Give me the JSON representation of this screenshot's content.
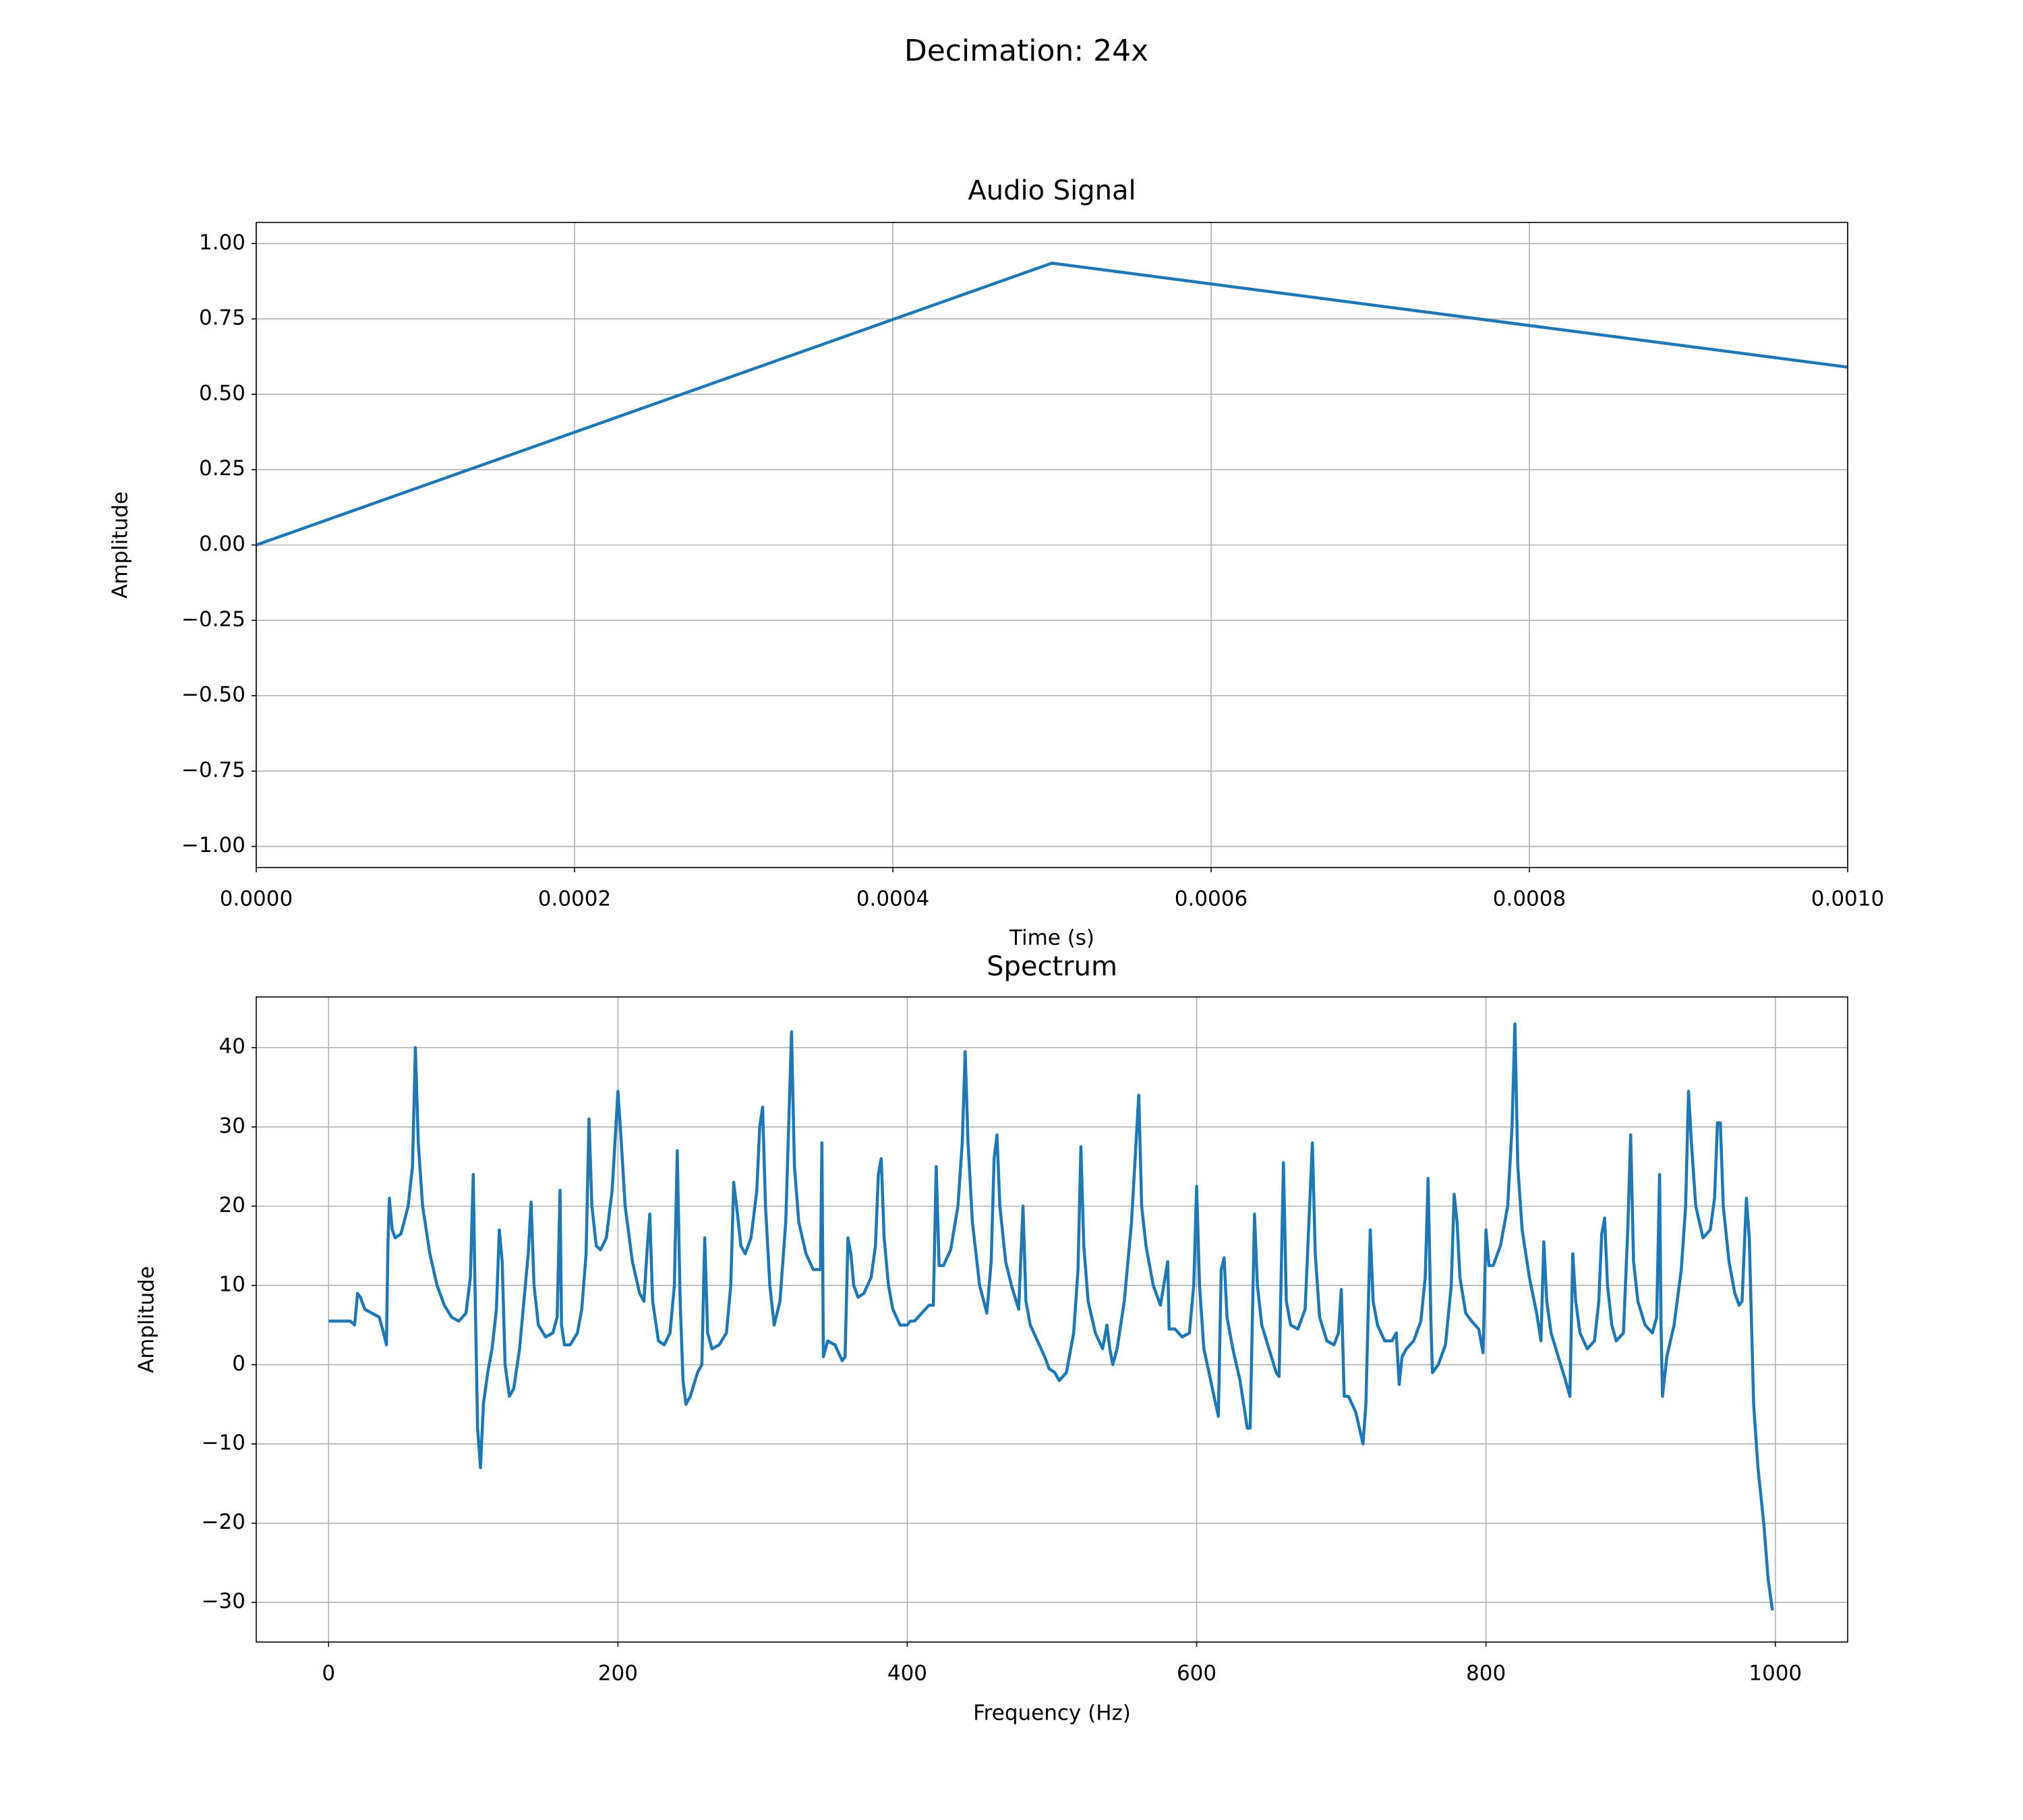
{
  "title": "Decimation: 24x",
  "chart_data": [
    {
      "type": "line",
      "title": "Audio Signal",
      "xlabel": "Time (s)",
      "ylabel": "Amplitude",
      "x": [
        0,
        0.0005,
        0.001
      ],
      "values": [
        0,
        0.935,
        0.59
      ],
      "color": "#1f77b4",
      "xlim": [
        0,
        0.001
      ],
      "ylim": [
        -1.07,
        1.07
      ],
      "xticks": [
        {
          "value": 0,
          "label": "0.0000"
        },
        {
          "value": 0.0002,
          "label": "0.0002"
        },
        {
          "value": 0.0004,
          "label": "0.0004"
        },
        {
          "value": 0.0006,
          "label": "0.0006"
        },
        {
          "value": 0.0008,
          "label": "0.0008"
        },
        {
          "value": 0.001,
          "label": "0.0010"
        }
      ],
      "yticks": [
        {
          "value": -1,
          "label": "−1.00"
        },
        {
          "value": -0.75,
          "label": "−0.75"
        },
        {
          "value": -0.5,
          "label": "−0.50"
        },
        {
          "value": -0.25,
          "label": "−0.25"
        },
        {
          "value": 0,
          "label": "0.00"
        },
        {
          "value": 0.25,
          "label": "0.25"
        },
        {
          "value": 0.5,
          "label": "0.50"
        },
        {
          "value": 0.75,
          "label": "0.75"
        },
        {
          "value": 1,
          "label": "1.00"
        }
      ],
      "grid": true
    },
    {
      "type": "line",
      "title": "Spectrum",
      "xlabel": "Frequency (Hz)",
      "ylabel": "Amplitude",
      "x": [
        0,
        15,
        18,
        20,
        22,
        25,
        35,
        38,
        40,
        41,
        42,
        44,
        46,
        50,
        55,
        58,
        60,
        62,
        65,
        70,
        75,
        80,
        85,
        90,
        95,
        98,
        100,
        101,
        103,
        105,
        107,
        110,
        113,
        116,
        118,
        120,
        122,
        125,
        128,
        132,
        135,
        138,
        140,
        142,
        145,
        150,
        155,
        158,
        160,
        161,
        163,
        167,
        172,
        175,
        178,
        180,
        182,
        185,
        188,
        192,
        196,
        200,
        202,
        205,
        210,
        215,
        218,
        220,
        222,
        224,
        228,
        232,
        236,
        239,
        241,
        243,
        245,
        247,
        250,
        255,
        258,
        260,
        262,
        265,
        270,
        275,
        278,
        280,
        282,
        285,
        288,
        292,
        296,
        298,
        300,
        302,
        305,
        308,
        312,
        316,
        318,
        320,
        322,
        325,
        330,
        335,
        340,
        341,
        342,
        345,
        350,
        355,
        357,
        359,
        361,
        363,
        366,
        370,
        375,
        378,
        380,
        382,
        384,
        387,
        390,
        395,
        400,
        402,
        405,
        410,
        415,
        418,
        420,
        422,
        425,
        430,
        435,
        438,
        440,
        442,
        445,
        450,
        455,
        458,
        460,
        462,
        464,
        468,
        472,
        477,
        480,
        482,
        485,
        490,
        495,
        498,
        502,
        505,
        510,
        515,
        518,
        520,
        522,
        525,
        530,
        535,
        538,
        540,
        542,
        545,
        550,
        555,
        560,
        562,
        565,
        570,
        575,
        580,
        581,
        585,
        590,
        595,
        598,
        600,
        602,
        605,
        608,
        612,
        615,
        617,
        619,
        621,
        625,
        630,
        635,
        637,
        640,
        642,
        645,
        650,
        655,
        657,
        660,
        662,
        665,
        670,
        675,
        680,
        682,
        685,
        690,
        695,
        698,
        700,
        702,
        705,
        710,
        715,
        717,
        720,
        722,
        725,
        730,
        735,
        738,
        740,
        742,
        745,
        750,
        755,
        758,
        760,
        762,
        763,
        767,
        772,
        776,
        778,
        780,
        782,
        786,
        790,
        795,
        798,
        800,
        802,
        805,
        810,
        815,
        818,
        820,
        822,
        825,
        830,
        835,
        838,
        840,
        842,
        845,
        850,
        855,
        858,
        860,
        862,
        865,
        870,
        875,
        878,
        880,
        882,
        884,
        887,
        890,
        895,
        898,
        900,
        902,
        905,
        910,
        915,
        918,
        920,
        921,
        922,
        925,
        930,
        935,
        938,
        940,
        942,
        945,
        950,
        955,
        958,
        960,
        962,
        964,
        968,
        972,
        975,
        977,
        980,
        982,
        985,
        988,
        992,
        995,
        998
      ],
      "values": [
        5.5,
        5.5,
        5,
        9,
        8.5,
        7,
        6,
        4,
        2.5,
        15,
        21,
        17,
        16,
        16.5,
        20,
        25,
        40,
        28,
        20,
        14,
        10,
        7.5,
        6,
        5.5,
        6.5,
        11,
        24,
        12,
        -8,
        -13,
        -5,
        -1,
        2,
        7,
        17,
        13,
        0,
        -4,
        -3,
        2,
        8,
        14,
        20.5,
        10,
        5,
        3.5,
        4,
        6,
        22,
        5,
        2.5,
        2.5,
        4,
        7,
        14,
        31,
        20,
        15,
        14.5,
        16,
        22,
        34.5,
        29,
        20,
        13,
        9,
        8,
        14,
        19,
        8,
        3,
        2.5,
        4,
        10,
        27,
        8,
        -2,
        -5,
        -4,
        -1,
        0,
        16,
        4,
        2,
        2.5,
        4,
        10,
        23,
        20,
        15,
        14,
        16,
        22,
        30,
        32.5,
        20,
        10,
        5,
        8,
        18,
        30,
        42,
        25,
        18,
        14,
        12,
        12,
        28,
        1,
        3,
        2.5,
        0.5,
        1,
        16,
        14,
        10,
        8.5,
        9,
        11,
        15,
        24,
        26,
        16,
        10,
        7,
        5,
        5,
        5.5,
        5.5,
        6.5,
        7.5,
        7.5,
        25,
        12.5,
        12.5,
        14.5,
        20,
        28,
        39.5,
        28,
        18,
        10,
        6.5,
        13,
        26,
        29,
        20,
        13,
        10,
        7,
        20,
        8,
        5,
        3,
        1,
        -0.5,
        -1,
        -2,
        -1,
        4,
        12,
        27.5,
        15,
        8,
        4,
        2,
        5,
        2,
        0,
        2,
        8,
        18,
        34,
        20,
        15,
        10,
        7.5,
        13,
        4.5,
        4.5,
        3.5,
        4,
        10,
        22.5,
        10,
        2,
        -0.5,
        -4,
        -6.5,
        12,
        13.5,
        6,
        2,
        -2,
        -8,
        -8,
        19,
        10,
        5,
        2,
        -1,
        -1.5,
        25.5,
        8,
        5,
        4.5,
        7,
        28,
        14,
        6,
        3,
        2.5,
        4,
        9.5,
        -4,
        -4,
        -6,
        -10,
        -5,
        17,
        8,
        5,
        3,
        3,
        4,
        -2.5,
        1,
        2,
        3,
        5.5,
        11,
        23.5,
        5,
        -1,
        0,
        2.5,
        10,
        21.5,
        18,
        11,
        6.5,
        5.5,
        4.5,
        1.5,
        17,
        12.5,
        12.5,
        15,
        20,
        30,
        43,
        25,
        17,
        11,
        6.5,
        3,
        15.5,
        8,
        4,
        1,
        -2,
        -4,
        14,
        8,
        4,
        2,
        3,
        8,
        16.5,
        18.5,
        10,
        5,
        3,
        4,
        17,
        29,
        13,
        8,
        5,
        4,
        6,
        24,
        5,
        -4,
        1,
        5,
        12,
        20,
        34.5,
        28,
        20,
        16,
        17,
        21,
        30.5,
        30.5,
        20,
        13,
        9,
        7.5,
        8,
        21,
        16,
        -5,
        -13,
        -20,
        -27,
        -31
      ],
      "color": "#1f77b4",
      "xlim": [
        -50,
        1050
      ],
      "ylim": [
        -35,
        46.4
      ],
      "xticks": [
        0,
        200,
        400,
        600,
        800,
        1000
      ],
      "yticks": [
        {
          "value": -30,
          "label": "−30"
        },
        {
          "value": -20,
          "label": "−20"
        },
        {
          "value": -10,
          "label": "−10"
        },
        0,
        10,
        20,
        30,
        40
      ],
      "grid": true
    }
  ]
}
